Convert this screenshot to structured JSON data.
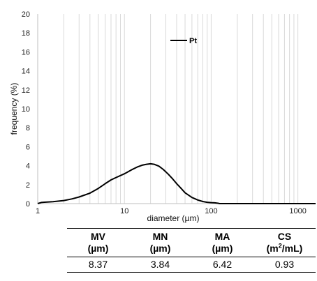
{
  "chart_data": {
    "type": "line",
    "x_scale": "log",
    "xlabel": "diameter (µm)",
    "ylabel": "frequency (%)",
    "xlim": [
      1,
      1600
    ],
    "ylim": [
      0,
      20
    ],
    "x_ticks": [
      "1",
      "10",
      "100",
      "1000"
    ],
    "y_ticks": [
      "0",
      "2",
      "4",
      "6",
      "8",
      "10",
      "12",
      "14",
      "16",
      "18",
      "20"
    ],
    "grid": "vertical minor log gridlines",
    "legend": {
      "position": "top-center",
      "entries": [
        "Pt"
      ]
    },
    "series": [
      {
        "name": "Pt",
        "color": "#000000",
        "x": [
          1.0,
          1.1,
          1.2,
          1.5,
          2.0,
          2.5,
          3.0,
          4.0,
          5.0,
          6.0,
          7.0,
          8.0,
          10.0,
          12.0,
          14.0,
          16.0,
          18.0,
          20.0,
          22.0,
          25.0,
          28.0,
          32.0,
          36.0,
          40.0,
          45.0,
          50.0,
          60.0,
          70.0,
          80.0,
          90.0,
          100.0,
          110.0,
          120.0,
          125.0,
          130.0,
          150.0,
          200.0,
          500.0,
          1000.0,
          1600.0
        ],
        "y": [
          0.0,
          0.12,
          0.15,
          0.2,
          0.32,
          0.5,
          0.7,
          1.1,
          1.6,
          2.1,
          2.5,
          2.75,
          3.15,
          3.55,
          3.85,
          4.05,
          4.15,
          4.2,
          4.15,
          3.95,
          3.6,
          3.1,
          2.6,
          2.1,
          1.6,
          1.15,
          0.65,
          0.38,
          0.22,
          0.14,
          0.1,
          0.08,
          0.04,
          0.0,
          0.0,
          0.0,
          0.0,
          0.0,
          0.0,
          0.0
        ]
      }
    ]
  },
  "stats_table": {
    "headers": [
      {
        "abbr": "MV",
        "unit": "(µm)"
      },
      {
        "abbr": "MN",
        "unit": "(µm)"
      },
      {
        "abbr": "MA",
        "unit": "(µm)"
      },
      {
        "abbr": "CS",
        "unit_pre": "(m",
        "unit_sup": "2",
        "unit_post": "/mL)"
      }
    ],
    "values": [
      "8.37",
      "3.84",
      "6.42",
      "0.93"
    ]
  }
}
